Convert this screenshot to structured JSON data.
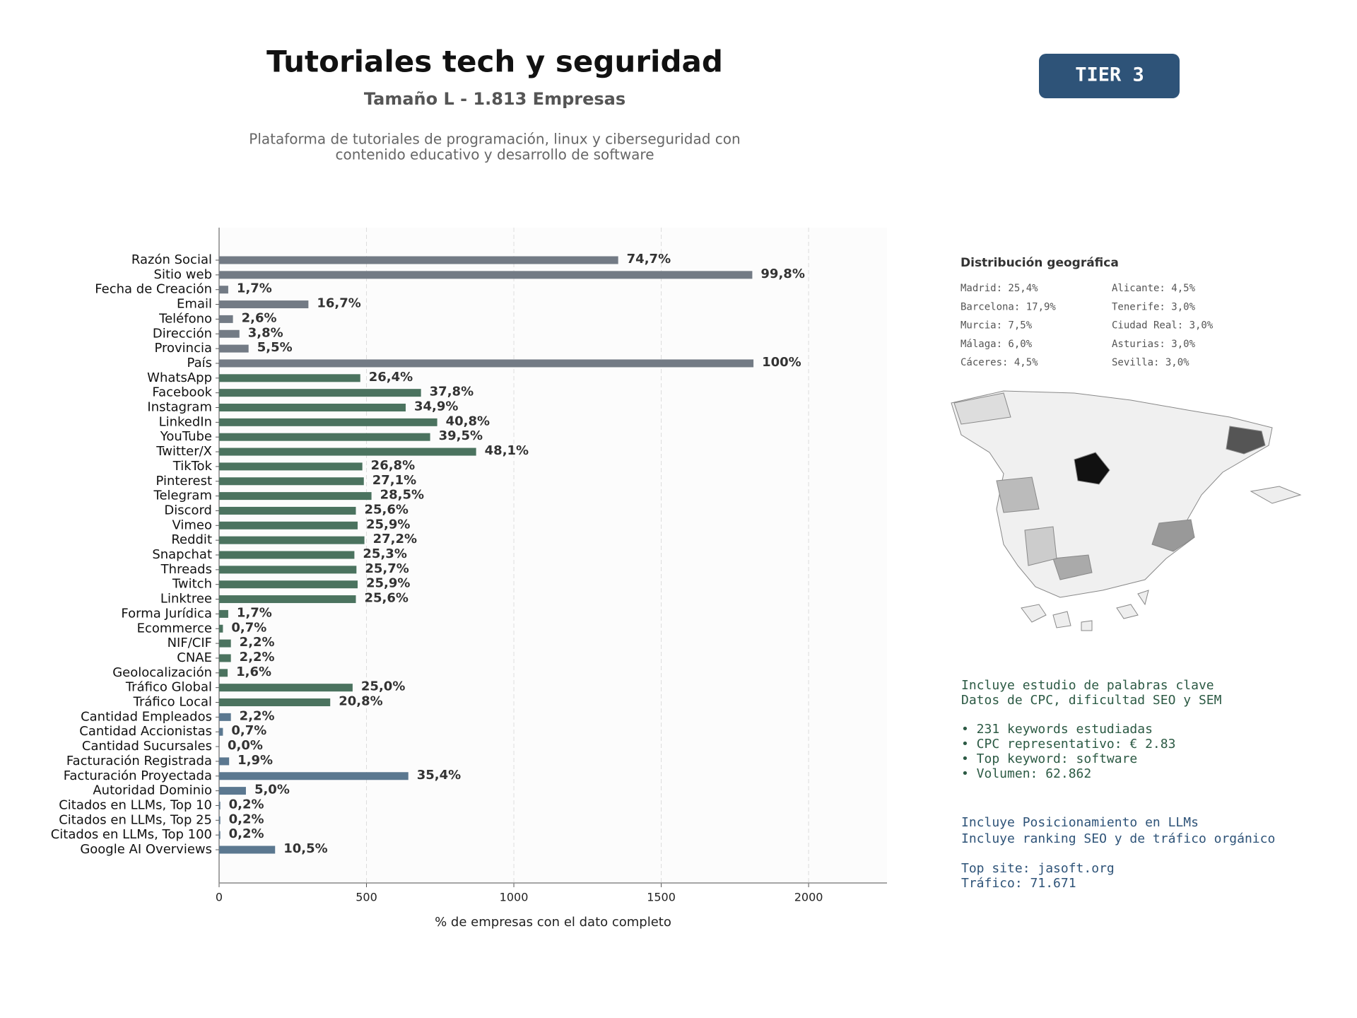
{
  "header": {
    "title": "Tutoriales tech y seguridad",
    "subtitle": "Tamaño L - 1.813 Empresas",
    "description": [
      "Plataforma de tutoriales de programación, linux y ciberseguridad con",
      "contenido educativo y desarrollo de software"
    ],
    "badge": "TIER 3"
  },
  "chart_data": {
    "type": "bar",
    "orientation": "horizontal",
    "categories": [
      "Razón Social",
      "Sitio web",
      "Fecha de Creación",
      "Email",
      "Teléfono",
      "Dirección",
      "Provincia",
      "País",
      "WhatsApp",
      "Facebook",
      "Instagram",
      "LinkedIn",
      "YouTube",
      "Twitter/X",
      "TikTok",
      "Pinterest",
      "Telegram",
      "Discord",
      "Vimeo",
      "Reddit",
      "Snapchat",
      "Threads",
      "Twitch",
      "Linktree",
      "Forma Jurídica",
      "Ecommerce",
      "NIF/CIF",
      "CNAE",
      "Geolocalización",
      "Tráfico Global",
      "Tráfico Local",
      "Cantidad Empleados",
      "Cantidad Accionistas",
      "Cantidad Sucursales",
      "Facturación Registrada",
      "Facturación Proyectada",
      "Autoridad Dominio",
      "Citados en LLMs, Top 10",
      "Citados en LLMs, Top 25",
      "Citados en LLMs, Top 100",
      "Google AI Overviews"
    ],
    "values": [
      1354,
      1809,
      31,
      303,
      47,
      69,
      100,
      1813,
      479,
      685,
      633,
      740,
      716,
      872,
      486,
      491,
      517,
      464,
      470,
      493,
      459,
      466,
      470,
      464,
      31,
      13,
      40,
      40,
      29,
      453,
      377,
      40,
      13,
      0,
      34,
      642,
      91,
      4,
      4,
      4,
      190
    ],
    "value_labels": [
      "74,7%",
      "99,8%",
      "1,7%",
      "16,7%",
      "2,6%",
      "3,8%",
      "5,5%",
      "100%",
      "26,4%",
      "37,8%",
      "34,9%",
      "40,8%",
      "39,5%",
      "48,1%",
      "26,8%",
      "27,1%",
      "28,5%",
      "25,6%",
      "25,9%",
      "27,2%",
      "25,3%",
      "25,7%",
      "25,9%",
      "25,6%",
      "1,7%",
      "0,7%",
      "2,2%",
      "2,2%",
      "1,6%",
      "25,0%",
      "20,8%",
      "2,2%",
      "0,7%",
      "0,0%",
      "1,9%",
      "35,4%",
      "5,0%",
      "0,2%",
      "0,2%",
      "0,2%",
      "10,5%"
    ],
    "colors": [
      "#737b85",
      "#737b85",
      "#737b85",
      "#737b85",
      "#737b85",
      "#737b85",
      "#737b85",
      "#737b85",
      "#4b735f",
      "#4b735f",
      "#4b735f",
      "#4b735f",
      "#4b735f",
      "#4b735f",
      "#4b735f",
      "#4b735f",
      "#4b735f",
      "#4b735f",
      "#4b735f",
      "#4b735f",
      "#4b735f",
      "#4b735f",
      "#4b735f",
      "#4b735f",
      "#4b735f",
      "#4b735f",
      "#4b735f",
      "#4b735f",
      "#4b735f",
      "#4b735f",
      "#4b735f",
      "#5b7890",
      "#5b7890",
      "#5b7890",
      "#5b7890",
      "#5b7890",
      "#5b7890",
      "#5b7890",
      "#5b7890",
      "#5b7890",
      "#5b7890"
    ],
    "xlim": [
      0,
      2266
    ],
    "xticks": [
      0,
      500,
      1000,
      1500,
      2000
    ],
    "xlabel": "% de empresas con el dato completo",
    "grid": true
  },
  "geo": {
    "title": "Distribución geográfica",
    "items": [
      "Madrid: 25,4%",
      "Barcelona: 17,9%",
      "Murcia: 7,5%",
      "Málaga: 6,0%",
      "Cáceres: 4,5%",
      "Alicante: 4,5%",
      "Tenerife: 3,0%",
      "Ciudad Real: 3,0%",
      "Asturias: 3,0%",
      "Sevilla: 3,0%"
    ]
  },
  "info": {
    "seo": [
      "Incluye estudio de palabras clave",
      "Datos de CPC, dificultad SEO y SEM"
    ],
    "bullets": [
      "• 231 keywords estudiadas",
      "• CPC representativo: € 2.83",
      "• Top keyword: software",
      "• Volumen: 62.862"
    ],
    "llm": [
      "Incluye Posicionamiento en LLMs",
      "Incluye ranking SEO y de tráfico orgánico"
    ],
    "site": [
      "Top site: jasoft.org",
      "Tráfico: 71.671"
    ]
  }
}
